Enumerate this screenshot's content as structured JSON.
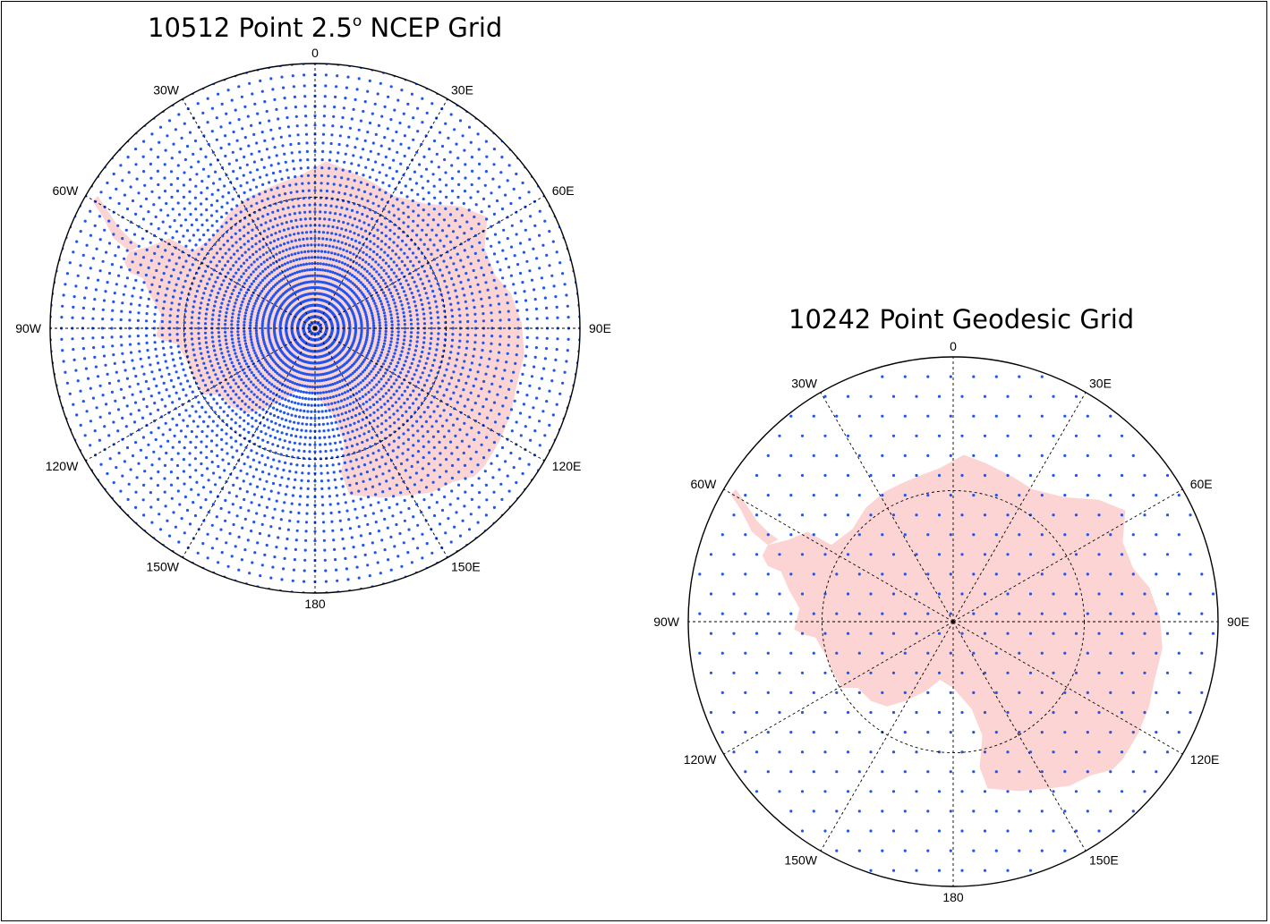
{
  "maps": [
    {
      "id": "ncep",
      "title_main": "10512 Point 2.5",
      "title_sup": "o",
      "title_tail": " NCEP Grid",
      "grid_type": "latlon",
      "projection": "south polar stereographic",
      "lon_labels": [
        "0",
        "30E",
        "60E",
        "90E",
        "120E",
        "150E",
        "180",
        "150W",
        "120W",
        "90W",
        "60W",
        "30W"
      ],
      "colors": {
        "land": "#fcd4d4",
        "points": "#2255ee",
        "graticule": "#000000"
      }
    },
    {
      "id": "geodesic",
      "title": "10242 Point Geodesic Grid",
      "grid_type": "geodesic",
      "projection": "south polar stereographic",
      "lon_labels": [
        "0",
        "30E",
        "60E",
        "90E",
        "120E",
        "150E",
        "180",
        "150W",
        "120W",
        "90W",
        "60W",
        "30W"
      ],
      "colors": {
        "land": "#fcd4d4",
        "points": "#2255ee",
        "graticule": "#000000"
      }
    }
  ]
}
